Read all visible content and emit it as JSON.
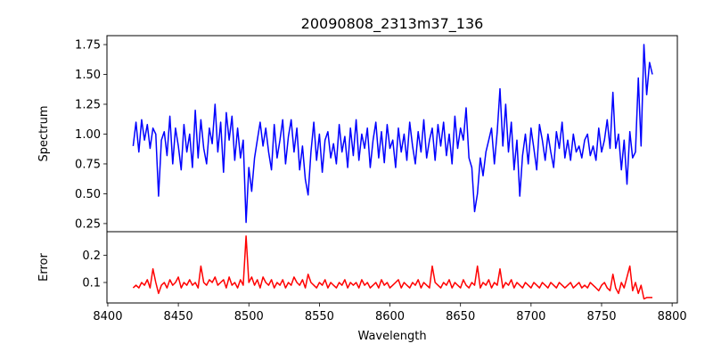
{
  "chart_data": {
    "type": "line",
    "title": "20090808_2313m37_136",
    "xlabel": "Wavelength",
    "xlim": [
      8399.4,
      8803.7
    ],
    "xticks": [
      8400,
      8450,
      8500,
      8550,
      8600,
      8650,
      8700,
      8750,
      8800
    ],
    "x_start": 8418,
    "x_step": 2,
    "panels": [
      {
        "ylabel": "Spectrum",
        "ylim": [
          0.182,
          1.825
        ],
        "yticks": [
          "0.25",
          "0.50",
          "0.75",
          "1.00",
          "1.25",
          "1.50",
          "1.75"
        ],
        "color": "#0000ff",
        "values": [
          0.9,
          1.1,
          0.85,
          1.12,
          0.95,
          1.08,
          0.88,
          1.05,
          1.0,
          0.48,
          0.95,
          1.02,
          0.82,
          1.15,
          0.75,
          1.05,
          0.9,
          0.7,
          1.08,
          0.85,
          1.0,
          0.72,
          1.2,
          0.8,
          1.12,
          0.88,
          0.75,
          1.05,
          0.92,
          1.25,
          0.85,
          1.1,
          0.68,
          1.18,
          0.95,
          1.15,
          0.78,
          1.05,
          0.8,
          0.95,
          0.26,
          0.72,
          0.52,
          0.8,
          0.95,
          1.1,
          0.9,
          1.05,
          0.85,
          0.7,
          1.08,
          0.8,
          0.95,
          1.12,
          0.75,
          0.98,
          1.12,
          0.85,
          1.05,
          0.7,
          0.9,
          0.62,
          0.49,
          0.85,
          1.1,
          0.78,
          1.0,
          0.68,
          0.95,
          1.02,
          0.8,
          0.92,
          0.75,
          1.08,
          0.85,
          0.98,
          0.72,
          1.05,
          0.82,
          1.12,
          0.78,
          1.0,
          0.88,
          1.05,
          0.72,
          0.95,
          1.1,
          0.8,
          1.02,
          0.76,
          1.08,
          0.88,
          0.95,
          0.72,
          1.05,
          0.85,
          1.0,
          0.78,
          1.1,
          0.9,
          0.75,
          1.02,
          0.85,
          1.12,
          0.8,
          0.95,
          1.05,
          0.78,
          1.08,
          0.9,
          1.1,
          0.82,
          1.0,
          0.75,
          1.15,
          0.88,
          1.05,
          0.95,
          1.22,
          0.8,
          0.72,
          0.35,
          0.5,
          0.8,
          0.65,
          0.85,
          0.95,
          1.05,
          0.75,
          1.02,
          1.38,
          0.9,
          1.25,
          0.85,
          1.1,
          0.7,
          0.95,
          0.48,
          0.82,
          1.0,
          0.75,
          1.05,
          0.88,
          0.7,
          1.08,
          0.95,
          0.78,
          1.0,
          0.85,
          0.72,
          1.02,
          0.88,
          1.1,
          0.8,
          0.95,
          0.78,
          1.0,
          0.85,
          0.9,
          0.8,
          0.95,
          1.0,
          0.82,
          0.9,
          0.78,
          1.05,
          0.85,
          0.95,
          1.12,
          0.88,
          1.35,
          0.88,
          1.0,
          0.7,
          0.95,
          0.58,
          1.02,
          0.8,
          0.85,
          1.47,
          0.9,
          1.75,
          1.33,
          1.6,
          1.5
        ]
      },
      {
        "ylabel": "Error",
        "ylim": [
          0.025,
          0.286
        ],
        "yticks": [
          "0.1",
          "0.2"
        ],
        "color": "#ff0000",
        "values": [
          0.08,
          0.09,
          0.08,
          0.1,
          0.09,
          0.11,
          0.08,
          0.15,
          0.1,
          0.06,
          0.09,
          0.1,
          0.08,
          0.11,
          0.09,
          0.1,
          0.12,
          0.08,
          0.1,
          0.09,
          0.11,
          0.09,
          0.1,
          0.08,
          0.16,
          0.1,
          0.09,
          0.11,
          0.1,
          0.12,
          0.09,
          0.1,
          0.11,
          0.08,
          0.12,
          0.09,
          0.1,
          0.08,
          0.11,
          0.09,
          0.27,
          0.1,
          0.12,
          0.09,
          0.11,
          0.08,
          0.12,
          0.1,
          0.09,
          0.11,
          0.08,
          0.1,
          0.09,
          0.11,
          0.08,
          0.1,
          0.09,
          0.12,
          0.1,
          0.09,
          0.11,
          0.08,
          0.13,
          0.1,
          0.09,
          0.08,
          0.1,
          0.09,
          0.11,
          0.08,
          0.1,
          0.09,
          0.08,
          0.1,
          0.09,
          0.11,
          0.08,
          0.1,
          0.09,
          0.1,
          0.08,
          0.11,
          0.09,
          0.1,
          0.08,
          0.09,
          0.1,
          0.08,
          0.11,
          0.09,
          0.1,
          0.08,
          0.09,
          0.1,
          0.11,
          0.08,
          0.1,
          0.09,
          0.08,
          0.1,
          0.09,
          0.11,
          0.08,
          0.1,
          0.09,
          0.08,
          0.16,
          0.1,
          0.09,
          0.08,
          0.1,
          0.09,
          0.11,
          0.08,
          0.1,
          0.09,
          0.08,
          0.11,
          0.09,
          0.08,
          0.1,
          0.09,
          0.16,
          0.08,
          0.1,
          0.09,
          0.11,
          0.08,
          0.1,
          0.09,
          0.15,
          0.08,
          0.1,
          0.09,
          0.11,
          0.08,
          0.1,
          0.09,
          0.08,
          0.1,
          0.09,
          0.08,
          0.1,
          0.09,
          0.08,
          0.1,
          0.09,
          0.08,
          0.1,
          0.09,
          0.08,
          0.1,
          0.09,
          0.08,
          0.09,
          0.1,
          0.08,
          0.09,
          0.1,
          0.08,
          0.09,
          0.08,
          0.1,
          0.09,
          0.08,
          0.07,
          0.09,
          0.1,
          0.08,
          0.07,
          0.13,
          0.08,
          0.06,
          0.1,
          0.08,
          0.12,
          0.16,
          0.07,
          0.1,
          0.06,
          0.09,
          0.04,
          0.045,
          0.045,
          0.045
        ]
      }
    ]
  }
}
